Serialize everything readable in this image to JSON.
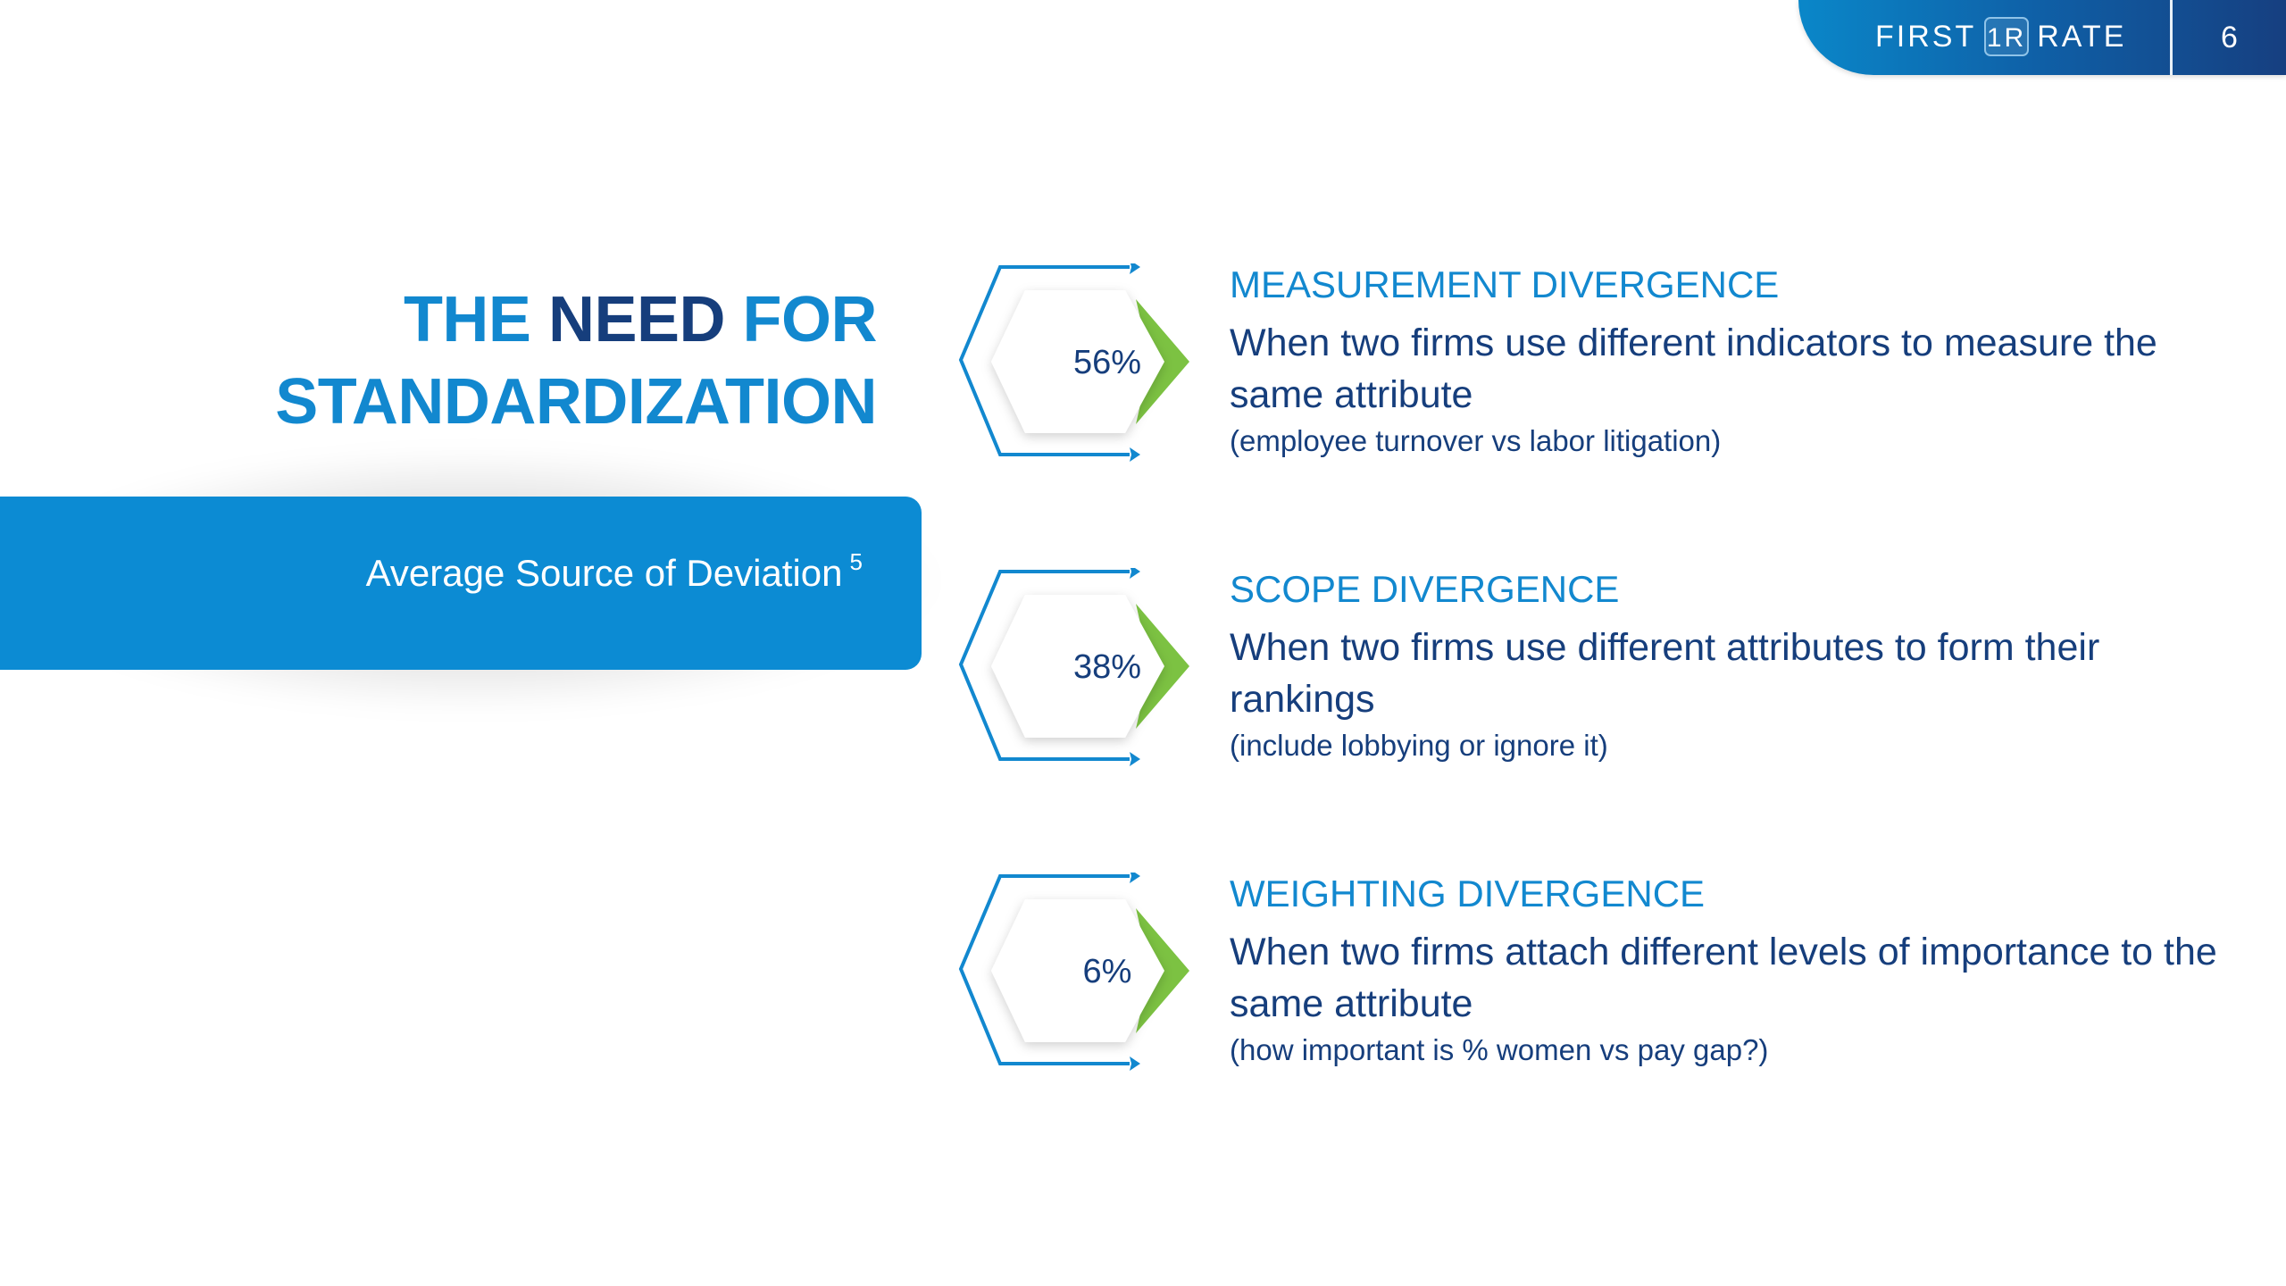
{
  "header": {
    "brand_left": "FIRST",
    "brand_mark": "1R",
    "brand_right": "RATE",
    "page_number": "6",
    "colors": {
      "gradient_start": "#0a87c9",
      "gradient_end": "#163f80"
    }
  },
  "title": {
    "line1_part1": "THE",
    "line1_part2": "NEED",
    "line1_part3": "FOR",
    "line2": "STANDARDIZATION",
    "colors": {
      "accent": "#1288cf",
      "dark": "#163e7c"
    }
  },
  "bar": {
    "label": "Average Source of Deviation",
    "footnote": "5",
    "color": "#0c8bd3"
  },
  "items": [
    {
      "percent": "56%",
      "title": "MEASUREMENT DIVERGENCE",
      "description": "When two firms use different indicators to measure the same attribute",
      "note": "(employee turnover vs labor litigation)"
    },
    {
      "percent": "38%",
      "title": "SCOPE DIVERGENCE",
      "description": "When two firms use different attributes to form their rankings",
      "note": "(include lobbying or ignore it)"
    },
    {
      "percent": "6%",
      "title": "WEIGHTING DIVERGENCE",
      "description": "When two firms attach different levels of importance to the same attribute",
      "note": "(how important is % women vs pay gap?)"
    }
  ],
  "hex_colors": {
    "outline": "#1288cf",
    "chevron": "#7cc242"
  }
}
